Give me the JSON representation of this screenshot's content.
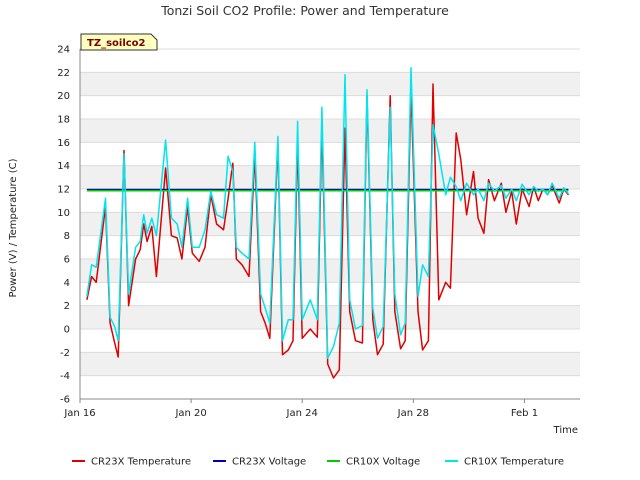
{
  "chart_data": {
    "type": "line",
    "title": "Tonzi Soil CO2 Profile: Power and Temperature",
    "xlabel": "Time",
    "ylabel": "Power (V) / Temperature (C)",
    "site_label": "TZ_soilco2",
    "ylim": [
      -6,
      24
    ],
    "y_ticks": [
      -6,
      -4,
      -2,
      0,
      2,
      4,
      6,
      8,
      10,
      12,
      14,
      16,
      18,
      20,
      22,
      24
    ],
    "xlim": [
      "2023-01-16",
      "2023-02-03"
    ],
    "x_ticks": [
      {
        "date": "2023-01-16",
        "label": "Jan 16"
      },
      {
        "date": "2023-01-20",
        "label": "Jan 20"
      },
      {
        "date": "2023-01-24",
        "label": "Jan 24"
      },
      {
        "date": "2023-01-28",
        "label": "Jan 28"
      },
      {
        "date": "2023-02-01",
        "label": "Feb 1"
      }
    ],
    "grid": "horizontal bands",
    "legend_position": "bottom",
    "series": [
      {
        "name": "CR23X Temperature",
        "color": "#e00000",
        "x": [
          "2023-01-16 06:00",
          "2023-01-16 10:00",
          "2023-01-16 14:00",
          "2023-01-16 22:00",
          "2023-01-17 02:00",
          "2023-01-17 06:00",
          "2023-01-17 09:00",
          "2023-01-17 14:00",
          "2023-01-17 18:00",
          "2023-01-18 00:00",
          "2023-01-18 04:00",
          "2023-01-18 07:00",
          "2023-01-18 10:00",
          "2023-01-18 14:00",
          "2023-01-18 18:00",
          "2023-01-19 02:00",
          "2023-01-19 07:00",
          "2023-01-19 12:00",
          "2023-01-19 16:00",
          "2023-01-19 21:00",
          "2023-01-20 01:00",
          "2023-01-20 07:00",
          "2023-01-20 12:00",
          "2023-01-20 17:00",
          "2023-01-20 22:00",
          "2023-01-21 04:00",
          "2023-01-21 08:00",
          "2023-01-21 12:00",
          "2023-01-21 15:00",
          "2023-01-21 20:00",
          "2023-01-22 02:00",
          "2023-01-22 07:00",
          "2023-01-22 12:00",
          "2023-01-22 16:00",
          "2023-01-22 20:00",
          "2023-01-23 03:00",
          "2023-01-23 07:00",
          "2023-01-23 12:00",
          "2023-01-23 16:00",
          "2023-01-23 20:00",
          "2023-01-24 00:00",
          "2023-01-24 07:00",
          "2023-01-24 13:00",
          "2023-01-24 17:00",
          "2023-01-24 22:00",
          "2023-01-25 03:00",
          "2023-01-25 08:00",
          "2023-01-25 13:00",
          "2023-01-25 17:00",
          "2023-01-25 22:00",
          "2023-01-26 04:00",
          "2023-01-26 08:00",
          "2023-01-26 13:00",
          "2023-01-26 17:00",
          "2023-01-26 22:00",
          "2023-01-27 04:00",
          "2023-01-27 08:00",
          "2023-01-27 13:00",
          "2023-01-27 17:00",
          "2023-01-27 22:00",
          "2023-01-28 04:00",
          "2023-01-28 08:00",
          "2023-01-28 13:00",
          "2023-01-28 17:00",
          "2023-01-28 22:00",
          "2023-01-29 04:00",
          "2023-01-29 08:00",
          "2023-01-29 13:00",
          "2023-01-29 17:00",
          "2023-01-29 22:00",
          "2023-01-30 04:00",
          "2023-01-30 08:00",
          "2023-01-30 13:00",
          "2023-01-30 17:00",
          "2023-01-30 22:00",
          "2023-01-31 04:00",
          "2023-01-31 08:00",
          "2023-01-31 13:00",
          "2023-01-31 17:00",
          "2023-01-31 22:00",
          "2023-02-01 04:00",
          "2023-02-01 08:00",
          "2023-02-01 12:00",
          "2023-02-01 16:00",
          "2023-02-01 20:00",
          "2023-02-02 00:00",
          "2023-02-02 06:00",
          "2023-02-02 10:00",
          "2023-02-02 14:00"
        ],
        "y": [
          2.5,
          4.5,
          4.0,
          10.5,
          0.5,
          -1.2,
          -2.4,
          15.3,
          2.0,
          6.0,
          6.8,
          9.0,
          7.5,
          8.8,
          4.5,
          13.8,
          8.0,
          7.8,
          6.0,
          10.5,
          6.5,
          5.8,
          7.0,
          11.5,
          9.0,
          8.5,
          11.2,
          14.2,
          6.0,
          5.5,
          4.5,
          15.0,
          1.5,
          0.5,
          -0.8,
          16.0,
          -2.2,
          -1.8,
          -1.0,
          16.2,
          -0.8,
          0.0,
          -0.7,
          17.5,
          -3.0,
          -4.2,
          -3.5,
          17.2,
          1.5,
          -1.0,
          -1.2,
          20.0,
          0.8,
          -2.2,
          -1.3,
          20.0,
          1.5,
          -1.7,
          -1.0,
          20.7,
          1.5,
          -1.8,
          -1.0,
          21.0,
          2.5,
          4.0,
          3.5,
          16.8,
          14.5,
          9.8,
          13.5,
          9.5,
          8.2,
          12.8,
          11.0,
          12.5,
          10.0,
          11.8,
          9.0,
          12.0,
          10.5,
          12.2,
          11.0,
          12.0,
          11.5,
          12.3,
          10.8,
          12.0,
          11.5
        ],
        "y_note_ignore": []
      },
      {
        "name": "CR23X Voltage",
        "color": "#0000b0",
        "x": [
          "2023-01-16 06:00",
          "2023-02-02 14:00"
        ],
        "y": [
          11.95,
          11.95
        ]
      },
      {
        "name": "CR10X Voltage",
        "color": "#00cc00",
        "x": [
          "2023-01-16 06:00",
          "2023-02-02 14:00"
        ],
        "y": [
          11.85,
          11.85
        ]
      },
      {
        "name": "CR10X Temperature",
        "color": "#00e5ee",
        "x": [
          "2023-01-16 06:00",
          "2023-01-16 10:00",
          "2023-01-16 14:00",
          "2023-01-16 22:00",
          "2023-01-17 02:00",
          "2023-01-17 06:00",
          "2023-01-17 09:00",
          "2023-01-17 14:00",
          "2023-01-17 18:00",
          "2023-01-18 00:00",
          "2023-01-18 04:00",
          "2023-01-18 07:00",
          "2023-01-18 10:00",
          "2023-01-18 14:00",
          "2023-01-18 18:00",
          "2023-01-19 02:00",
          "2023-01-19 07:00",
          "2023-01-19 12:00",
          "2023-01-19 16:00",
          "2023-01-19 21:00",
          "2023-01-20 01:00",
          "2023-01-20 07:00",
          "2023-01-20 12:00",
          "2023-01-20 17:00",
          "2023-01-20 22:00",
          "2023-01-21 04:00",
          "2023-01-21 08:00",
          "2023-01-21 12:00",
          "2023-01-21 15:00",
          "2023-01-21 20:00",
          "2023-01-22 02:00",
          "2023-01-22 07:00",
          "2023-01-22 12:00",
          "2023-01-22 16:00",
          "2023-01-22 20:00",
          "2023-01-23 03:00",
          "2023-01-23 07:00",
          "2023-01-23 12:00",
          "2023-01-23 16:00",
          "2023-01-23 20:00",
          "2023-01-24 00:00",
          "2023-01-24 07:00",
          "2023-01-24 13:00",
          "2023-01-24 17:00",
          "2023-01-24 22:00",
          "2023-01-25 03:00",
          "2023-01-25 08:00",
          "2023-01-25 13:00",
          "2023-01-25 17:00",
          "2023-01-25 22:00",
          "2023-01-26 04:00",
          "2023-01-26 08:00",
          "2023-01-26 13:00",
          "2023-01-26 17:00",
          "2023-01-26 22:00",
          "2023-01-27 04:00",
          "2023-01-27 08:00",
          "2023-01-27 13:00",
          "2023-01-27 17:00",
          "2023-01-27 22:00",
          "2023-01-28 04:00",
          "2023-01-28 08:00",
          "2023-01-28 13:00",
          "2023-01-28 17:00",
          "2023-01-28 22:00",
          "2023-01-29 04:00",
          "2023-01-29 08:00",
          "2023-01-29 13:00",
          "2023-01-29 17:00",
          "2023-01-29 22:00",
          "2023-01-30 04:00",
          "2023-01-30 08:00",
          "2023-01-30 13:00",
          "2023-01-30 17:00",
          "2023-01-30 22:00",
          "2023-01-31 04:00",
          "2023-01-31 08:00",
          "2023-01-31 13:00",
          "2023-01-31 17:00",
          "2023-01-31 22:00",
          "2023-02-01 04:00",
          "2023-02-01 08:00",
          "2023-02-01 12:00",
          "2023-02-01 16:00",
          "2023-02-01 20:00",
          "2023-02-02 00:00",
          "2023-02-02 06:00",
          "2023-02-02 10:00",
          "2023-02-02 14:00"
        ],
        "y": [
          2.8,
          5.5,
          5.3,
          11.2,
          1.0,
          0.2,
          -1.0,
          15.0,
          3.0,
          7.0,
          7.5,
          9.8,
          8.2,
          9.5,
          8.0,
          16.2,
          9.5,
          9.0,
          7.0,
          11.2,
          7.0,
          7.0,
          8.5,
          11.8,
          9.8,
          9.5,
          14.8,
          13.5,
          7.0,
          6.5,
          6.0,
          16.0,
          3.0,
          1.8,
          0.5,
          16.5,
          -1.0,
          0.8,
          0.8,
          17.8,
          0.8,
          2.5,
          0.8,
          19.0,
          -2.5,
          -1.5,
          0.5,
          21.8,
          2.5,
          0.0,
          0.3,
          20.5,
          1.8,
          -0.8,
          0.2,
          19.0,
          3.0,
          -0.5,
          0.5,
          22.4,
          2.8,
          5.5,
          4.5,
          17.5,
          15.0,
          11.5,
          13.0,
          12.2,
          11.0,
          12.5,
          11.5,
          12.0,
          11.0,
          12.5,
          11.8,
          12.3,
          11.2,
          12.0,
          11.0,
          12.4,
          11.5,
          12.2,
          11.8,
          12.0,
          11.5,
          12.5,
          11.2,
          12.1,
          11.6
        ],
        "y_note_ignore": []
      }
    ]
  }
}
